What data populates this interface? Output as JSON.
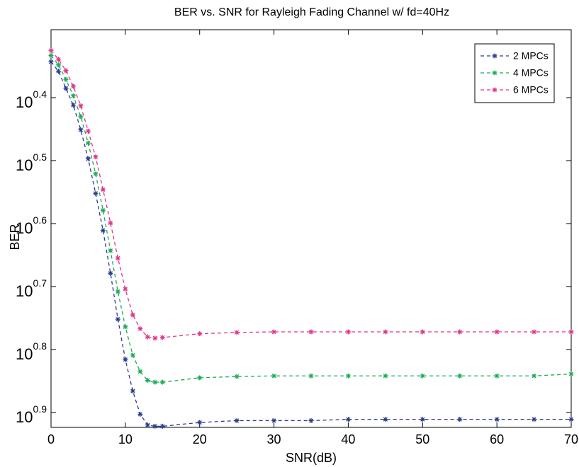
{
  "chart_data": {
    "type": "line",
    "title": "BER vs. SNR for Rayleigh Fading Channel w/ fd=40Hz",
    "x_label": "SNR(dB)",
    "y_label": "BER",
    "x": [
      0,
      1,
      2,
      3,
      4,
      5,
      6,
      7,
      8,
      9,
      10,
      11,
      12,
      13,
      14,
      15,
      20,
      25,
      30,
      35,
      40,
      45,
      50,
      55,
      60,
      65,
      70
    ],
    "series": [
      {
        "name": "2 MPCs",
        "color": "#2b3a8f",
        "values": [
          2.203,
          2.28,
          2.427,
          2.582,
          2.825,
          3.141,
          3.565,
          4.083,
          4.775,
          5.649,
          6.546,
          7.345,
          7.998,
          8.318,
          8.356,
          8.356,
          8.241,
          8.185,
          8.185,
          8.185,
          8.147,
          8.147,
          8.147,
          8.147,
          8.147,
          8.147,
          8.147
        ]
      },
      {
        "name": "4 MPCs",
        "color": "#1aaa55",
        "values": [
          2.153,
          2.228,
          2.35,
          2.495,
          2.692,
          2.965,
          3.319,
          3.793,
          4.395,
          5.105,
          5.808,
          6.442,
          6.839,
          7.063,
          7.112,
          7.112,
          6.998,
          6.966,
          6.95,
          6.95,
          6.95,
          6.95,
          6.95,
          6.95,
          6.95,
          6.95,
          6.902
        ]
      },
      {
        "name": "6 MPCs",
        "color": "#e0338a",
        "values": [
          2.113,
          2.183,
          2.275,
          2.41,
          2.588,
          2.838,
          3.119,
          3.516,
          3.972,
          4.519,
          5.058,
          5.559,
          5.848,
          6.026,
          6.053,
          6.039,
          5.957,
          5.929,
          5.916,
          5.916,
          5.916,
          5.916,
          5.916,
          5.916,
          5.916,
          5.916,
          5.916
        ]
      }
    ],
    "xlim": [
      0,
      70
    ],
    "xticks": [
      0,
      10,
      20,
      30,
      40,
      50,
      60,
      70
    ],
    "ylim": [
      1.959,
      8.39
    ],
    "y_log": true,
    "y_reversed": true,
    "yticks": [
      {
        "value": 2.512,
        "label": "10^0.4"
      },
      {
        "value": 3.162,
        "label": "10^0.5"
      },
      {
        "value": 3.981,
        "label": "10^0.6"
      },
      {
        "value": 5.012,
        "label": "10^0.7"
      },
      {
        "value": 6.31,
        "label": "10^0.8"
      },
      {
        "value": 7.943,
        "label": "10^0.9"
      }
    ],
    "grid": false,
    "legend": "upper right"
  }
}
